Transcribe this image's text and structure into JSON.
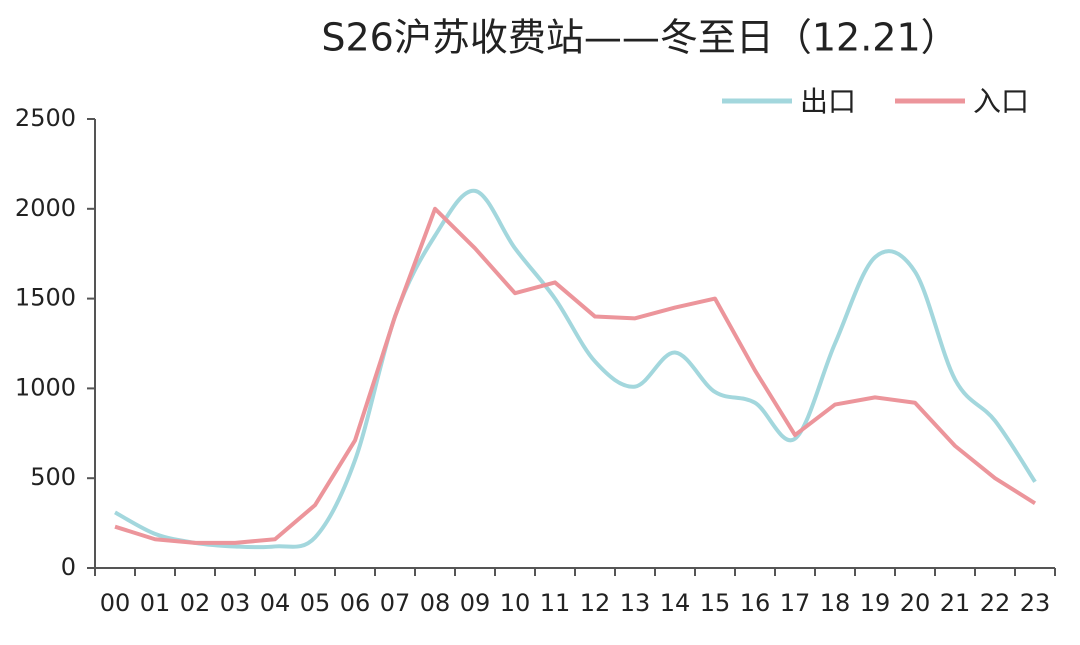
{
  "chart_data": {
    "type": "line",
    "title": "S26沪苏收费站——冬至日（12.21）",
    "categories": [
      "00",
      "01",
      "02",
      "03",
      "04",
      "05",
      "06",
      "07",
      "08",
      "09",
      "10",
      "11",
      "12",
      "13",
      "14",
      "15",
      "16",
      "17",
      "18",
      "19",
      "20",
      "21",
      "22",
      "23"
    ],
    "series": [
      {
        "name": "出口",
        "color": "#a3d7dd",
        "smooth": true,
        "values": [
          310,
          190,
          140,
          120,
          120,
          170,
          600,
          1400,
          1850,
          2100,
          1780,
          1500,
          1150,
          1010,
          1200,
          980,
          920,
          720,
          1250,
          1730,
          1650,
          1050,
          820,
          480
        ]
      },
      {
        "name": "入口",
        "color": "#ec959b",
        "smooth": false,
        "values": [
          230,
          160,
          140,
          140,
          160,
          350,
          710,
          1400,
          2000,
          1780,
          1530,
          1590,
          1400,
          1390,
          1450,
          1500,
          1100,
          740,
          910,
          950,
          920,
          680,
          500,
          360
        ]
      }
    ],
    "ylim": [
      0,
      2500
    ],
    "yticks": [
      0,
      500,
      1000,
      1500,
      2000,
      2500
    ],
    "grid": false,
    "legend": "top-right"
  }
}
